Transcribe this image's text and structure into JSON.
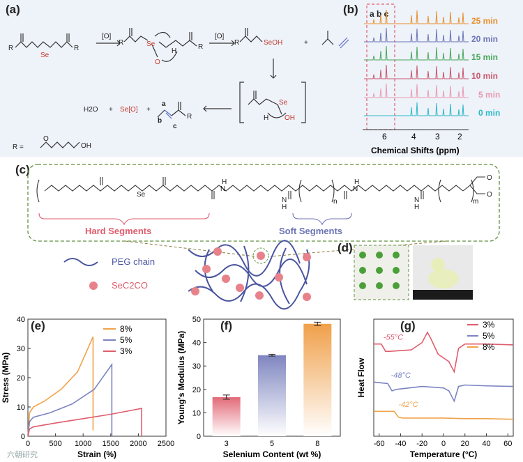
{
  "panels": {
    "a": {
      "label": "(a)",
      "reagent1": "[O]",
      "reagent2": "[O]",
      "atom_se": "Se",
      "atom_o": "O",
      "atom_h": "H",
      "seoh": "SeOH",
      "se": "Se",
      "oh": "OH",
      "plus": "+",
      "water": "H2O",
      "seo": "Se[O]",
      "site_a": "a",
      "site_b": "b",
      "site_c": "c",
      "r_left": "R",
      "r_def": "R =",
      "r_def_oh": "OH",
      "r_def_o": "O"
    },
    "b": {
      "label": "(b)",
      "region_label": "a b c",
      "xlabel": "Chemical Shifts (ppm)",
      "ticks": [
        "6",
        "4",
        "3",
        "2"
      ],
      "times": [
        "25 min",
        "20 min",
        "15 min",
        "10 min",
        "5 min",
        "0 min"
      ],
      "colors": [
        "#e8902c",
        "#6b74b5",
        "#47a85a",
        "#c9546a",
        "#e89ab0",
        "#2bb8c7"
      ]
    },
    "c": {
      "label": "(c)",
      "hard": "Hard Segments",
      "soft": "Soft Segments",
      "se": "Se",
      "n": "n",
      "m": "m",
      "nh": "N",
      "h": "H",
      "o": "O"
    },
    "network": {
      "peg_label": "PEG chain",
      "sec2co_label": "SeC2CO"
    },
    "d": {
      "label": "(d)"
    }
  },
  "chart_data": [
    {
      "type": "line",
      "panel": "(e)",
      "xlabel": "Strain (%)",
      "ylabel": "Stress (MPa)",
      "xlim": [
        0,
        2500
      ],
      "ylim": [
        0,
        40
      ],
      "xticks": [
        0,
        500,
        1000,
        1500,
        2000,
        2500
      ],
      "yticks": [
        0,
        10,
        20,
        30,
        40
      ],
      "series": [
        {
          "name": "8%",
          "color": "#f0a24a",
          "x": [
            0,
            30,
            100,
            300,
            600,
            900,
            1180,
            1180
          ],
          "y": [
            0,
            8,
            10,
            12,
            16,
            22,
            34,
            2
          ]
        },
        {
          "name": "5%",
          "color": "#7b84c2",
          "x": [
            0,
            30,
            100,
            400,
            800,
            1200,
            1520,
            1520
          ],
          "y": [
            0,
            5,
            6.5,
            8,
            11,
            16,
            24.5,
            0
          ]
        },
        {
          "name": "3%",
          "color": "#e05c6c",
          "x": [
            0,
            30,
            100,
            500,
            1000,
            1500,
            2060,
            2060
          ],
          "y": [
            0,
            2.5,
            3.2,
            4.5,
            6,
            7.5,
            9.5,
            0
          ]
        }
      ]
    },
    {
      "type": "bar",
      "panel": "(f)",
      "xlabel": "Selenium Content (wt %)",
      "ylabel": "Young's Modulus (MPa)",
      "categories": [
        "3",
        "5",
        "8"
      ],
      "values": [
        16.7,
        34.6,
        48.0
      ],
      "errors": [
        0.9,
        0.4,
        0.7
      ],
      "colors": [
        "#e26a78",
        "#7f86c0",
        "#f0a04a"
      ],
      "ylim": [
        0,
        50
      ],
      "yticks": [
        0,
        10,
        20,
        30,
        40,
        50
      ]
    },
    {
      "type": "line",
      "panel": "(g)",
      "xlabel": "Temperature (°C)",
      "ylabel": "Heat Flow",
      "xlim": [
        -65,
        65
      ],
      "xticks": [
        -60,
        -40,
        -20,
        0,
        20,
        40,
        60
      ],
      "annotations": [
        "-55°C",
        "-48°C",
        "-42°C"
      ],
      "series": [
        {
          "name": "3%",
          "color": "#e05c6c",
          "x": [
            -65,
            -58,
            -54,
            -50,
            -30,
            -20,
            -15,
            -12,
            -5,
            5,
            10,
            14,
            20,
            40,
            65
          ],
          "y": [
            3.15,
            3.15,
            2.9,
            2.9,
            2.95,
            3.2,
            3.55,
            3.35,
            2.8,
            2.55,
            2.2,
            3.0,
            3.15,
            3.15,
            3.12
          ]
        },
        {
          "name": "5%",
          "color": "#7b84c2",
          "x": [
            -65,
            -52,
            -48,
            -44,
            -20,
            0,
            5,
            10,
            14,
            20,
            40,
            65
          ],
          "y": [
            1.85,
            1.8,
            1.55,
            1.6,
            1.7,
            1.65,
            1.55,
            1.2,
            1.7,
            1.75,
            1.72,
            1.7
          ]
        },
        {
          "name": "8%",
          "color": "#f0a24a",
          "x": [
            -65,
            -46,
            -42,
            -38,
            0,
            20,
            40,
            65
          ],
          "y": [
            0.85,
            0.85,
            0.65,
            0.62,
            0.62,
            0.6,
            0.6,
            0.58
          ]
        }
      ]
    }
  ],
  "watermark": "六朝研究"
}
